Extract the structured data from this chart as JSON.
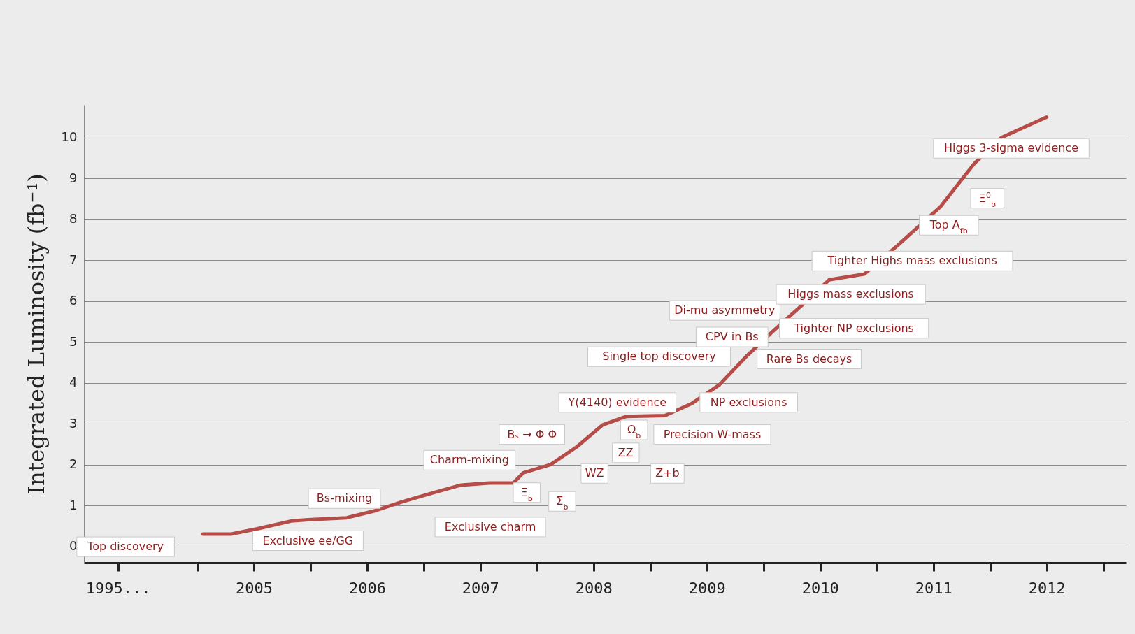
{
  "chart_data": {
    "type": "line",
    "ylabel": "Integrated Luminosity (fb⁻¹)",
    "x": [
      2005.05,
      2005.3,
      2005.53,
      2005.83,
      2005.98,
      2006.32,
      2006.57,
      2006.82,
      2007.07,
      2007.33,
      2007.58,
      2007.79,
      2007.88,
      2008.12,
      2008.35,
      2008.58,
      2008.79,
      2009.13,
      2009.37,
      2009.61,
      2009.85,
      2010.09,
      2010.34,
      2010.58,
      2010.89,
      2011.2,
      2011.56,
      2011.86,
      2012.1,
      2012.5
    ],
    "series": [
      {
        "color": "#b54c47",
        "values": [
          0.3,
          0.3,
          0.43,
          0.62,
          0.65,
          0.7,
          0.87,
          1.1,
          1.3,
          1.5,
          1.55,
          1.55,
          1.8,
          2.0,
          2.43,
          2.97,
          3.18,
          3.2,
          3.5,
          3.95,
          4.65,
          5.28,
          5.9,
          6.52,
          6.66,
          7.4,
          8.3,
          9.36,
          10.0,
          10.5
        ]
      }
    ],
    "xlim": [
      2004.0,
      2013.2
    ],
    "xticks": [
      {
        "value": 2004.3,
        "label": "1995..."
      },
      {
        "value": 2005,
        "label": null
      },
      {
        "value": 2005.5,
        "label": "2005"
      },
      {
        "value": 2006,
        "label": null
      },
      {
        "value": 2006.5,
        "label": "2006"
      },
      {
        "value": 2007,
        "label": null
      },
      {
        "value": 2007.5,
        "label": "2007"
      },
      {
        "value": 2008,
        "label": null
      },
      {
        "value": 2008.5,
        "label": "2008"
      },
      {
        "value": 2009,
        "label": null
      },
      {
        "value": 2009.5,
        "label": "2009"
      },
      {
        "value": 2010,
        "label": null
      },
      {
        "value": 2010.5,
        "label": "2010"
      },
      {
        "value": 2011,
        "label": null
      },
      {
        "value": 2011.5,
        "label": "2011"
      },
      {
        "value": 2012,
        "label": null
      },
      {
        "value": 2012.5,
        "label": "2012"
      },
      {
        "value": 2013,
        "label": null
      }
    ],
    "ylim": [
      -0.4,
      10.8
    ],
    "yticks": [
      0,
      1,
      2,
      3,
      4,
      5,
      6,
      7,
      8,
      9,
      10
    ],
    "grid": "y",
    "annotations": [
      "Top discovery",
      "Exclusive ee/GG",
      "Bs-mixing",
      "Exclusive charm",
      "Charm-mixing",
      "Bₛ → Φ Φ",
      "Ξ$_{b}$",
      "Σ$_{b}$",
      "WZ",
      "ZZ",
      "Ω$_{b}$",
      "Y(4140) evidence",
      "Precision W-mass",
      "Z+b",
      "NP exclusions",
      "Single top discovery",
      "CPV in Bs",
      "Rare Bs decays",
      "Di-mu asymmetry",
      "Tighter NP exclusions",
      "Higgs mass exclusions",
      "Tighter Highs mass exclusions",
      "Top A$_{fb}$",
      "Ξ$^{0}$$_{b}$",
      "Higgs 3-sigma evidence"
    ]
  }
}
